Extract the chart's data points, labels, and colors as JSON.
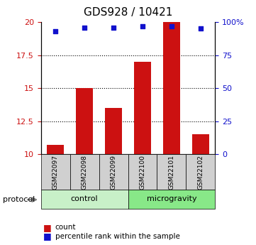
{
  "title": "GDS928 / 10421",
  "samples": [
    "GSM22097",
    "GSM22098",
    "GSM22099",
    "GSM22100",
    "GSM22101",
    "GSM22102"
  ],
  "bar_values": [
    10.7,
    15.0,
    13.5,
    17.0,
    20.0,
    11.5
  ],
  "bar_bottom": 10,
  "percentile_ranks": [
    93,
    96,
    96,
    97,
    97,
    95
  ],
  "bar_color": "#cc1111",
  "scatter_color": "#1111cc",
  "left_ylim": [
    10,
    20
  ],
  "right_ylim": [
    0,
    100
  ],
  "left_yticks": [
    10,
    12.5,
    15,
    17.5,
    20
  ],
  "right_yticks": [
    0,
    25,
    50,
    75,
    100
  ],
  "right_yticklabels": [
    "0",
    "25",
    "50",
    "75",
    "100%"
  ],
  "left_yticklabels": [
    "10",
    "12.5",
    "15",
    "17.5",
    "20"
  ],
  "grid_yticks": [
    12.5,
    15,
    17.5
  ],
  "groups": [
    {
      "label": "control",
      "start": 0,
      "end": 3,
      "color": "#c8f0c8"
    },
    {
      "label": "microgravity",
      "start": 3,
      "end": 6,
      "color": "#88e888"
    }
  ],
  "protocol_label": "protocol",
  "legend_items": [
    {
      "label": "count",
      "color": "#cc1111"
    },
    {
      "label": "percentile rank within the sample",
      "color": "#1111cc"
    }
  ],
  "bar_width": 0.6,
  "sample_box_color": "#d0d0d0",
  "background_color": "#ffffff"
}
